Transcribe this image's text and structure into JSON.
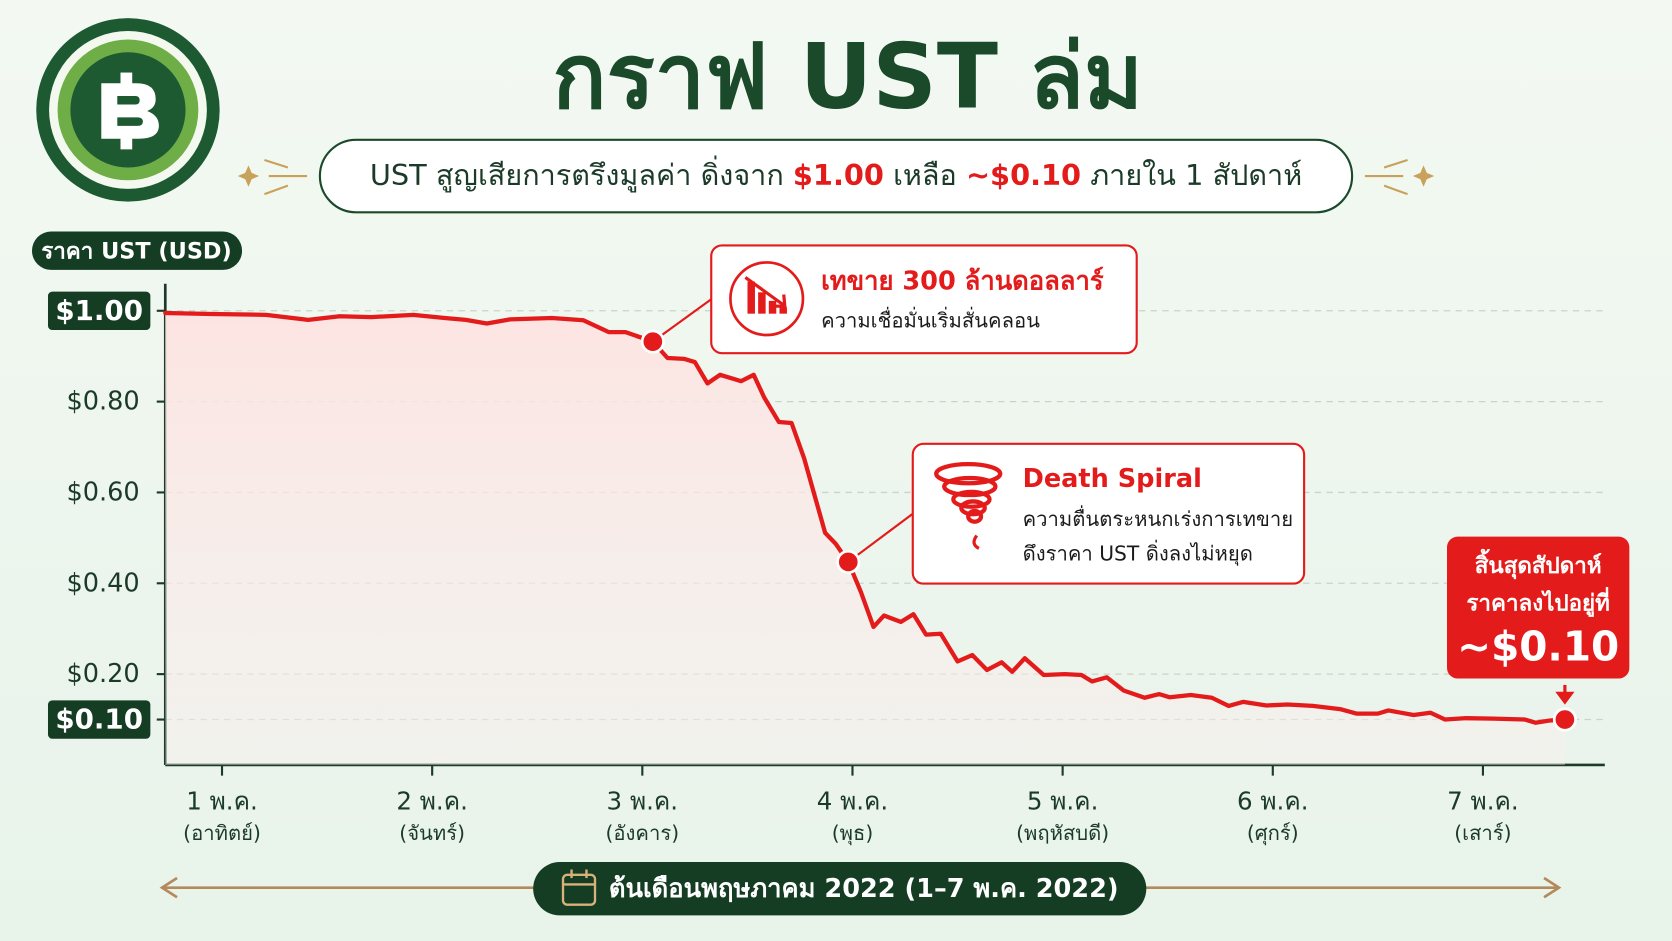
{
  "title": "กราฟ UST ล่ม",
  "subtitle": [
    {
      "text": "UST สูญเสียการตรึงมูลค่า ดิ่งจาก "
    },
    {
      "text": "$1.00",
      "highlight": true
    },
    {
      "text": " เหลือ "
    },
    {
      "text": "~$0.10",
      "highlight": true
    },
    {
      "text": " ภายใน 1 สัปดาห์"
    }
  ],
  "chart_data": {
    "type": "line",
    "ylabel": "ราคา UST (USD)",
    "xlabel": "ต้นเดือนพฤษภาคม 2022 (1–7 พ.ค. 2022)",
    "color": "#e31b1b",
    "grid": true,
    "xlim": [
      0.73,
      7.58
    ],
    "ylim": [
      0,
      1.05
    ],
    "xticks": [
      {
        "value": 1,
        "label": "1 พ.ค.",
        "sublabel": "(อาทิตย์)"
      },
      {
        "value": 2,
        "label": "2 พ.ค.",
        "sublabel": "(จันทร์)"
      },
      {
        "value": 3,
        "label": "3 พ.ค.",
        "sublabel": "(อังคาร)"
      },
      {
        "value": 4,
        "label": "4 พ.ค.",
        "sublabel": "(พุธ)"
      },
      {
        "value": 5,
        "label": "5 พ.ค.",
        "sublabel": "(พฤหัสบดี)"
      },
      {
        "value": 6,
        "label": "6 พ.ค.",
        "sublabel": "(ศุกร์)"
      },
      {
        "value": 7,
        "label": "7 พ.ค.",
        "sublabel": "(เสาร์)"
      }
    ],
    "yticks": [
      {
        "value": 1,
        "label": "$1.00",
        "highlight": true
      },
      {
        "value": 0.8,
        "label": "$0.80"
      },
      {
        "value": 0.6,
        "label": "$0.60"
      },
      {
        "value": 0.4,
        "label": "$0.40"
      },
      {
        "value": 0.2,
        "label": "$0.20"
      },
      {
        "value": 0.1,
        "label": "$0.10",
        "highlight": true
      }
    ],
    "x": [
      0.73,
      0.95,
      1.21,
      1.41,
      1.56,
      1.71,
      1.91,
      2.06,
      2.16,
      2.26,
      2.37,
      2.57,
      2.72,
      2.84,
      2.92,
      3.05,
      3.12,
      3.2,
      3.25,
      3.31,
      3.37,
      3.47,
      3.53,
      3.58,
      3.65,
      3.71,
      3.77,
      3.82,
      3.87,
      3.92,
      3.98,
      4.04,
      4.1,
      4.15,
      4.23,
      4.29,
      4.35,
      4.42,
      4.5,
      4.57,
      4.64,
      4.71,
      4.76,
      4.82,
      4.91,
      5.01,
      5.09,
      5.14,
      5.21,
      5.29,
      5.39,
      5.46,
      5.51,
      5.61,
      5.71,
      5.79,
      5.86,
      5.97,
      6.07,
      6.19,
      6.32,
      6.4,
      6.5,
      6.55,
      6.67,
      6.75,
      6.82,
      6.92,
      7.05,
      7.2,
      7.25,
      7.32,
      7.39
    ],
    "values": [
      0.995,
      0.993,
      0.991,
      0.98,
      0.988,
      0.986,
      0.991,
      0.984,
      0.98,
      0.972,
      0.981,
      0.984,
      0.979,
      0.953,
      0.953,
      0.932,
      0.896,
      0.894,
      0.887,
      0.84,
      0.859,
      0.845,
      0.859,
      0.809,
      0.755,
      0.753,
      0.675,
      0.593,
      0.511,
      0.487,
      0.447,
      0.381,
      0.304,
      0.329,
      0.315,
      0.332,
      0.287,
      0.289,
      0.228,
      0.242,
      0.209,
      0.226,
      0.205,
      0.235,
      0.198,
      0.2,
      0.198,
      0.184,
      0.193,
      0.164,
      0.148,
      0.156,
      0.149,
      0.154,
      0.148,
      0.13,
      0.139,
      0.131,
      0.133,
      0.13,
      0.123,
      0.113,
      0.113,
      0.12,
      0.11,
      0.115,
      0.1,
      0.103,
      0.102,
      0.1,
      0.093,
      0.098,
      0.1
    ],
    "annotations": [
      {
        "x": 3.05,
        "y": 0.932,
        "title": "เทขาย 300 ล้านดอลลาร์",
        "lines": [
          "ความเชื่อมั่นเริ่มสั่นคลอน"
        ]
      },
      {
        "x": 3.98,
        "y": 0.447,
        "title": "Death Spiral",
        "lines": [
          "ความตื่นตระหนกเร่งการเทขาย",
          "ดึงราคา UST ดิ่งลงไม่หยุด"
        ]
      },
      {
        "x": 7.39,
        "y": 0.1,
        "lines": [
          "สิ้นสุดสัปดาห์",
          "ราคาลงไปอยู่ที่"
        ],
        "title": "~$0.10"
      }
    ]
  }
}
